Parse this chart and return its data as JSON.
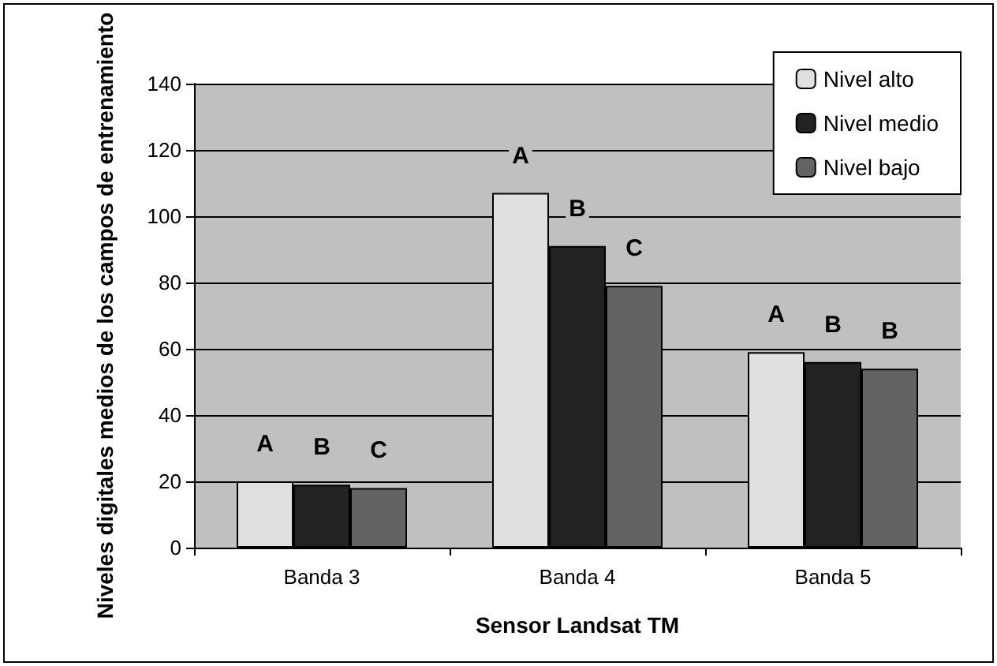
{
  "chart_data": {
    "type": "bar",
    "xlabel": "Sensor Landsat TM",
    "ylabel": "Niveles digitales medios de los campos de entrenamiento",
    "categories": [
      "Banda 3",
      "Banda 4",
      "Banda 5"
    ],
    "series": [
      {
        "name": "Nivel alto",
        "color": "#e0e0e0",
        "values": [
          20,
          107,
          59
        ],
        "value_labels": [
          "A",
          "A",
          "A"
        ]
      },
      {
        "name": "Nivel medio",
        "color": "#222222",
        "values": [
          19,
          91,
          56
        ],
        "value_labels": [
          "B",
          "B",
          "B"
        ]
      },
      {
        "name": "Nivel bajo",
        "color": "#636363",
        "values": [
          18,
          79,
          54
        ],
        "value_labels": [
          "C",
          "C",
          "B"
        ]
      }
    ],
    "ylim": [
      0,
      140
    ],
    "yticks": [
      0,
      20,
      40,
      60,
      80,
      100,
      120,
      140
    ],
    "grid": "y",
    "legend": "top right"
  }
}
